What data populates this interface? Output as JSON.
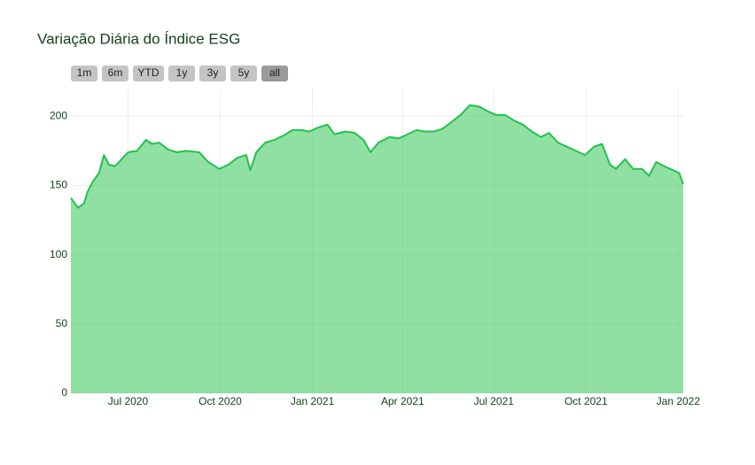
{
  "chart_data": {
    "type": "area",
    "title": "Variação Diária do Índice ESG",
    "range_buttons": [
      "1m",
      "6m",
      "YTD",
      "1y",
      "3y",
      "5y",
      "all"
    ],
    "active_button": "all",
    "x": [
      "2020-05-05",
      "2020-05-12",
      "2020-05-18",
      "2020-05-22",
      "2020-05-27",
      "2020-06-02",
      "2020-06-07",
      "2020-06-12",
      "2020-06-18",
      "2020-06-22",
      "2020-07-01",
      "2020-07-10",
      "2020-07-19",
      "2020-07-25",
      "2020-08-01",
      "2020-08-10",
      "2020-08-19",
      "2020-08-28",
      "2020-09-10",
      "2020-09-19",
      "2020-09-30",
      "2020-10-09",
      "2020-10-18",
      "2020-10-27",
      "2020-10-31",
      "2020-11-06",
      "2020-11-15",
      "2020-11-24",
      "2020-12-03",
      "2020-12-12",
      "2020-12-21",
      "2020-12-29",
      "2021-01-07",
      "2021-01-16",
      "2021-01-23",
      "2021-02-03",
      "2021-02-12",
      "2021-02-21",
      "2021-02-28",
      "2021-03-08",
      "2021-03-19",
      "2021-03-28",
      "2021-04-06",
      "2021-04-15",
      "2021-04-23",
      "2021-05-02",
      "2021-05-11",
      "2021-05-20",
      "2021-05-29",
      "2021-06-07",
      "2021-06-16",
      "2021-06-24",
      "2021-07-03",
      "2021-07-12",
      "2021-07-21",
      "2021-07-30",
      "2021-08-08",
      "2021-08-17",
      "2021-08-25",
      "2021-09-03",
      "2021-09-12",
      "2021-09-21",
      "2021-09-30",
      "2021-10-09",
      "2021-10-17",
      "2021-10-25",
      "2021-10-31",
      "2021-11-09",
      "2021-11-17",
      "2021-11-26",
      "2021-12-03",
      "2021-12-10",
      "2021-12-18",
      "2021-12-27",
      "2022-01-02",
      "2022-01-06"
    ],
    "values": [
      141,
      134,
      137,
      146,
      153,
      159,
      172,
      165,
      164,
      167,
      174,
      175,
      183,
      180,
      181,
      176,
      174,
      175,
      174,
      167,
      162,
      165,
      170,
      172,
      161,
      174,
      181,
      183,
      186,
      190,
      190,
      189,
      192,
      194,
      187,
      189,
      188,
      183,
      174,
      181,
      185,
      184,
      187,
      190,
      189,
      189,
      191,
      196,
      201,
      208,
      207,
      204,
      201,
      201,
      197,
      194,
      189,
      185,
      188,
      181,
      178,
      175,
      172,
      178,
      180,
      165,
      162,
      169,
      162,
      162,
      157,
      167,
      164,
      161,
      159,
      151
    ],
    "color": "#22c24a",
    "xlim": [
      "2020-05-05",
      "2022-01-06"
    ],
    "xticks": [
      {
        "value": "2020-07-01",
        "label": "Jul 2020"
      },
      {
        "value": "2020-10-01",
        "label": "Oct 2020"
      },
      {
        "value": "2021-01-01",
        "label": "Jan 2021"
      },
      {
        "value": "2021-04-01",
        "label": "Apr 2021"
      },
      {
        "value": "2021-07-01",
        "label": "Jul 2021"
      },
      {
        "value": "2021-10-01",
        "label": "Oct 2021"
      },
      {
        "value": "2022-01-01",
        "label": "Jan 2022"
      }
    ],
    "ylim": [
      0,
      220
    ],
    "yticks": [
      0,
      50,
      100,
      150,
      200
    ],
    "grid": true
  }
}
